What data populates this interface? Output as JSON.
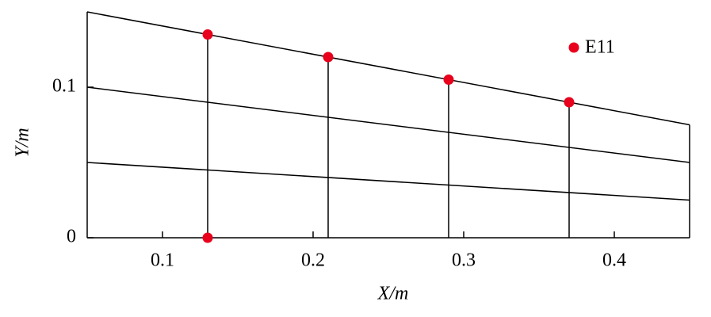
{
  "chart_data": {
    "type": "line",
    "xlabel": "X/m",
    "ylabel": "Y/m",
    "xlim": [
      0.05,
      0.45
    ],
    "ylim": [
      0,
      0.15
    ],
    "xticks": [
      0.1,
      0.2,
      0.3,
      0.4
    ],
    "yticks": [
      0,
      0.1
    ],
    "series": [
      {
        "color": "#000000",
        "x": [
          0.05,
          0.45
        ],
        "values": [
          0.15,
          0.075
        ]
      },
      {
        "color": "#000000",
        "x": [
          0.05,
          0.45
        ],
        "values": [
          0.1,
          0.05
        ]
      },
      {
        "color": "#000000",
        "x": [
          0.05,
          0.45
        ],
        "values": [
          0.05,
          0.025
        ]
      },
      {
        "color": "#000000",
        "x": [
          0.05,
          0.05
        ],
        "values": [
          0,
          0.15
        ]
      },
      {
        "color": "#000000",
        "x": [
          0.05,
          0.45
        ],
        "values": [
          0,
          0
        ]
      },
      {
        "color": "#000000",
        "x": [
          0.45,
          0.45
        ],
        "values": [
          0,
          0.075
        ]
      },
      {
        "color": "#000000",
        "x": [
          0.13,
          0.13
        ],
        "values": [
          0,
          0.135
        ]
      },
      {
        "color": "#000000",
        "x": [
          0.21,
          0.21
        ],
        "values": [
          0,
          0.12
        ]
      },
      {
        "color": "#000000",
        "x": [
          0.29,
          0.29
        ],
        "values": [
          0,
          0.105
        ]
      },
      {
        "color": "#000000",
        "x": [
          0.37,
          0.37
        ],
        "values": [
          0,
          0.09
        ]
      }
    ],
    "points": {
      "name": "E11",
      "color": "#e8001c",
      "x": [
        0.13,
        0.21,
        0.29,
        0.37,
        0.13
      ],
      "values": [
        0.135,
        0.12,
        0.105,
        0.09,
        0
      ]
    }
  }
}
